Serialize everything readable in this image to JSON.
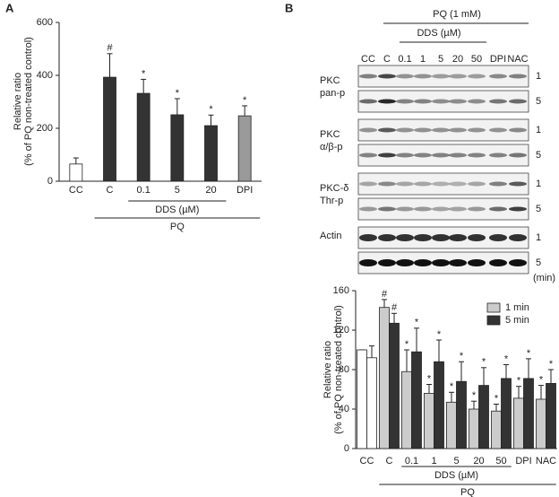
{
  "chart_data": [
    {
      "type": "bar",
      "panel": "A",
      "ylabel": [
        "Relative ratio",
        "(% of PQ non-treated control)"
      ],
      "categories": [
        "CC",
        "C",
        "0.1",
        "5",
        "20",
        "DPI"
      ],
      "values": [
        65,
        393,
        332,
        251,
        210,
        247
      ],
      "errors": [
        23,
        89,
        53,
        61,
        40,
        38
      ],
      "colors": [
        "#ffffff",
        "#333333",
        "#333333",
        "#333333",
        "#333333",
        "#999999"
      ],
      "annotations": [
        null,
        "#",
        "*",
        "*",
        "*",
        "*"
      ],
      "ylim": [
        0,
        600
      ],
      "yticks": [
        0,
        200,
        400,
        600
      ],
      "groups": [
        {
          "label": "DDS (µM)",
          "from": 2,
          "to": 4
        },
        {
          "label": "PQ",
          "from": 1,
          "to": 5
        }
      ]
    },
    {
      "type": "grouped_bar",
      "ylabel": [
        "Relative ratio",
        "(% of PQ non-treated control)"
      ],
      "categories": [
        "CC",
        "C",
        "0.1",
        "1",
        "5",
        "20",
        "50",
        "DPI",
        "NAC"
      ],
      "series": [
        {
          "name": "1 min",
          "color": "#cccccc",
          "colors": [
            "#ffffff",
            "#cccccc",
            "#cccccc",
            "#cccccc",
            "#cccccc",
            "#cccccc",
            "#cccccc",
            "#cccccc",
            "#cccccc"
          ],
          "values": [
            100,
            143,
            78,
            56,
            47,
            40,
            38,
            51,
            50
          ],
          "errors": [
            0,
            8,
            22,
            9,
            10,
            8,
            7,
            12,
            14
          ],
          "annotations": [
            null,
            "#",
            "*",
            "*",
            "*",
            "*",
            "*",
            "*",
            "*"
          ]
        },
        {
          "name": "5 min",
          "color": "#333333",
          "colors": [
            "#ffffff",
            "#333333",
            "#333333",
            "#333333",
            "#333333",
            "#333333",
            "#333333",
            "#333333",
            "#333333"
          ],
          "values": [
            92,
            127,
            98,
            88,
            68,
            64,
            71,
            71,
            66
          ],
          "errors": [
            12,
            10,
            24,
            22,
            20,
            18,
            14,
            20,
            14
          ],
          "annotations": [
            null,
            "#",
            "*",
            "*",
            "*",
            "*",
            "*",
            "*",
            "*"
          ]
        }
      ],
      "ylim": [
        0,
        160
      ],
      "yticks": [
        0,
        40,
        80,
        120,
        160
      ],
      "legend": "upper right",
      "groups": [
        {
          "label": "DDS (µM)",
          "from": 2,
          "to": 6
        },
        {
          "label": "PQ",
          "from": 1,
          "to": 8
        }
      ]
    }
  ],
  "blot": {
    "panel": "B",
    "treatment": "PQ (1 mM)",
    "subgroup": "DDS (µM)",
    "lanes": [
      "CC",
      "C",
      "0.1",
      "1",
      "5",
      "20",
      "50",
      "DPI",
      "NAC"
    ],
    "rows": [
      {
        "label": [
          "PKC",
          "pan-p"
        ],
        "times": [
          "1",
          "5"
        ]
      },
      {
        "label": [
          "PKC",
          "α/β-p"
        ],
        "times": [
          "1",
          "5"
        ]
      },
      {
        "label": [
          "PKC-δ",
          "Thr-p"
        ],
        "times": [
          "1",
          "5"
        ]
      },
      {
        "label": [
          "Actin"
        ],
        "times": [
          "1",
          "5"
        ]
      }
    ],
    "unit": "(min)"
  }
}
